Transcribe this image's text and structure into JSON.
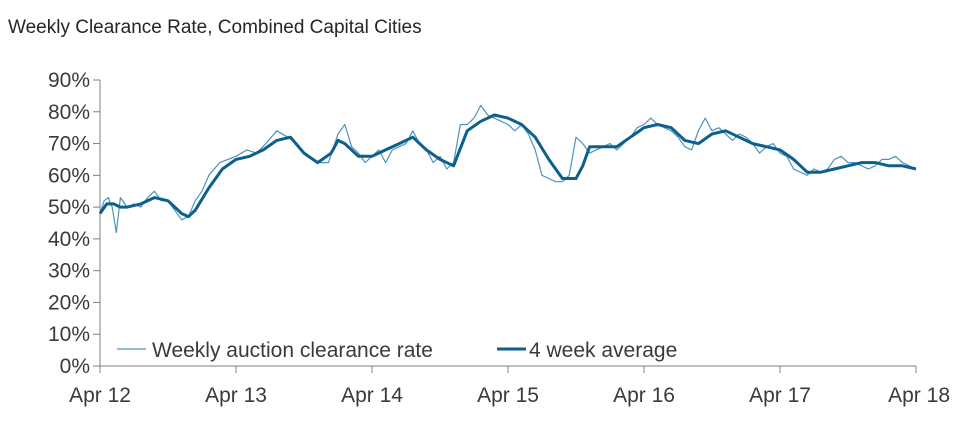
{
  "chart_data": {
    "type": "line",
    "title": "Weekly Clearance Rate, Combined Capital Cities",
    "xlabel": "",
    "ylabel": "",
    "ylim": [
      0,
      90
    ],
    "xlim": [
      0,
      6
    ],
    "y_ticks": [
      "0%",
      "10%",
      "20%",
      "30%",
      "40%",
      "50%",
      "60%",
      "70%",
      "80%",
      "90%"
    ],
    "x_ticks": [
      "Apr 12",
      "Apr 13",
      "Apr 14",
      "Apr 15",
      "Apr 16",
      "Apr 17",
      "Apr 18"
    ],
    "legend_position": "bottom-left",
    "colors": {
      "weekly": "#4d93bd",
      "average": "#0d5f8c",
      "axis": "#7f7f7f"
    },
    "series": [
      {
        "name": "Weekly auction clearance rate",
        "style": "thin",
        "x": [
          0,
          0.03,
          0.06,
          0.09,
          0.12,
          0.15,
          0.2,
          0.25,
          0.3,
          0.35,
          0.4,
          0.45,
          0.5,
          0.55,
          0.6,
          0.65,
          0.7,
          0.75,
          0.8,
          0.88,
          1.0,
          1.08,
          1.15,
          1.22,
          1.3,
          1.38,
          1.45,
          1.52,
          1.6,
          1.68,
          1.75,
          1.8,
          1.85,
          1.9,
          1.95,
          2.0,
          2.05,
          2.1,
          2.15,
          2.2,
          2.25,
          2.3,
          2.35,
          2.4,
          2.45,
          2.5,
          2.55,
          2.6,
          2.65,
          2.7,
          2.75,
          2.8,
          2.85,
          2.9,
          2.95,
          3.0,
          3.05,
          3.1,
          3.15,
          3.2,
          3.25,
          3.3,
          3.35,
          3.4,
          3.45,
          3.5,
          3.55,
          3.6,
          3.65,
          3.7,
          3.75,
          3.8,
          3.85,
          3.9,
          3.95,
          4.0,
          4.05,
          4.1,
          4.15,
          4.2,
          4.25,
          4.3,
          4.35,
          4.4,
          4.45,
          4.5,
          4.55,
          4.6,
          4.65,
          4.7,
          4.75,
          4.8,
          4.85,
          4.9,
          4.95,
          5.0,
          5.05,
          5.1,
          5.15,
          5.2,
          5.25,
          5.3,
          5.35,
          5.4,
          5.45,
          5.5,
          5.55,
          5.6,
          5.65,
          5.7,
          5.75,
          5.8,
          5.85,
          5.9,
          5.95,
          6.0
        ],
        "values": [
          48,
          52,
          53,
          50,
          42,
          53,
          50,
          51,
          50,
          53,
          55,
          52,
          52,
          49,
          46,
          47,
          52,
          55,
          60,
          64,
          66,
          68,
          67,
          70,
          74,
          72,
          70,
          66,
          64,
          64,
          73,
          76,
          69,
          67,
          64,
          66,
          68,
          64,
          68,
          69,
          70,
          74,
          70,
          68,
          64,
          66,
          62,
          64,
          76,
          76,
          78,
          82,
          79,
          78,
          77,
          76,
          74,
          76,
          73,
          68,
          60,
          59,
          58,
          58,
          60,
          72,
          70,
          67,
          68,
          69,
          70,
          68,
          70,
          72,
          75,
          76,
          78,
          76,
          75,
          74,
          72,
          69,
          68,
          74,
          78,
          74,
          75,
          73,
          71,
          73,
          72,
          70,
          67,
          69,
          70,
          67,
          66,
          62,
          61,
          60,
          62,
          61,
          62,
          65,
          66,
          64,
          64,
          63,
          62,
          63,
          65,
          65,
          66,
          64,
          63,
          62
        ]
      },
      {
        "name": "4 week average",
        "style": "thick",
        "x": [
          0,
          0.05,
          0.1,
          0.15,
          0.2,
          0.3,
          0.4,
          0.5,
          0.55,
          0.6,
          0.65,
          0.7,
          0.8,
          0.9,
          1.0,
          1.1,
          1.2,
          1.3,
          1.4,
          1.5,
          1.6,
          1.7,
          1.75,
          1.8,
          1.9,
          2.0,
          2.1,
          2.2,
          2.3,
          2.4,
          2.5,
          2.6,
          2.7,
          2.8,
          2.9,
          3.0,
          3.1,
          3.2,
          3.3,
          3.4,
          3.5,
          3.55,
          3.6,
          3.7,
          3.8,
          3.9,
          4.0,
          4.1,
          4.2,
          4.3,
          4.4,
          4.5,
          4.6,
          4.7,
          4.8,
          4.9,
          5.0,
          5.1,
          5.2,
          5.3,
          5.4,
          5.5,
          5.6,
          5.7,
          5.8,
          5.9,
          6.0
        ],
        "values": [
          48,
          51,
          51,
          50,
          50,
          51,
          53,
          52,
          50,
          48,
          47,
          49,
          56,
          62,
          65,
          66,
          68,
          71,
          72,
          67,
          64,
          67,
          71,
          70,
          66,
          66,
          68,
          70,
          72,
          68,
          65,
          63,
          74,
          77,
          79,
          78,
          76,
          72,
          65,
          59,
          59,
          63,
          69,
          69,
          69,
          72,
          75,
          76,
          75,
          71,
          70,
          73,
          74,
          72,
          70,
          69,
          68,
          65,
          61,
          61,
          62,
          63,
          64,
          64,
          63,
          63,
          62
        ]
      }
    ]
  }
}
